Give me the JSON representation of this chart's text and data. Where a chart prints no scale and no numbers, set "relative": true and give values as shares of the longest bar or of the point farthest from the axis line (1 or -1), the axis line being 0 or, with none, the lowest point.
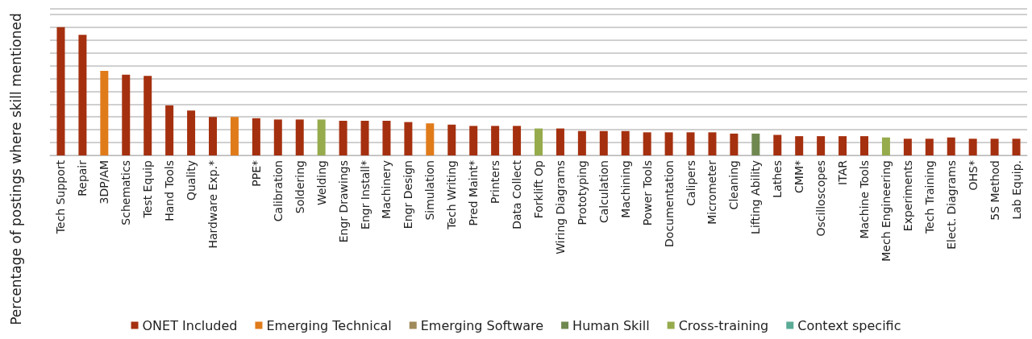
{
  "chart_data": {
    "type": "bar",
    "ylabel": "Percentage of postings where skill mentioned",
    "relative": true,
    "stacked": true,
    "grid": "y",
    "legend": "bottom",
    "categories": [
      "Tech Support",
      "Repair",
      "3DP/AM",
      "Schematics",
      "Test Equip",
      "Hand Tools",
      "Quality",
      "Hardware Exp.*",
      null,
      "PPE*",
      "Calibration",
      "Soldering",
      "Welding",
      "Engr Drawings",
      "Engr Install*",
      "Machinery",
      "Engr Design",
      "Simulation",
      "Tech Writing",
      "Pred Maint*",
      "Printers",
      "Data Collect",
      "Forklift Op",
      "Wiring Diagrams",
      "Prototyping",
      "Calculation",
      "Machining",
      "Power Tools",
      "Documentation",
      "Calipers",
      "Micrometer",
      "Cleaning",
      "Lifting Ability",
      "Lathes",
      "CMM*",
      "Oscilloscopes",
      "ITAR",
      "Machine Tools",
      "Mech Engineering",
      "Experiments",
      "Tech Training",
      "Elect. Diagrams",
      "OHS*",
      "5S Method",
      "Lab Equip."
    ],
    "series": [
      {
        "name": "ONET Included",
        "color": "#a5300f",
        "values": [
          1,
          0.94,
          null,
          0.63,
          0.62,
          0.39,
          0.35,
          0.3,
          null,
          0.29,
          0.28,
          0.28,
          null,
          0.27,
          0.27,
          0.27,
          0.26,
          null,
          0.24,
          0.23,
          0.23,
          0.23,
          null,
          0.21,
          0.19,
          0.19,
          0.19,
          0.18,
          0.18,
          0.18,
          0.18,
          0.17,
          null,
          0.16,
          0.15,
          0.15,
          0.15,
          0.15,
          null,
          0.13,
          0.13,
          0.14,
          0.13,
          0.13,
          0.13
        ]
      },
      {
        "name": "Emerging Technical",
        "color": "#e07b1a",
        "values": [
          null,
          null,
          0.66,
          null,
          null,
          null,
          null,
          null,
          0.3,
          null,
          null,
          null,
          null,
          null,
          null,
          null,
          null,
          0.25,
          null,
          null,
          null,
          null,
          null,
          null,
          null,
          null,
          null,
          null,
          null,
          null,
          null,
          null,
          null,
          null,
          null,
          null,
          null,
          null,
          null,
          null,
          null,
          null,
          null,
          null,
          null
        ]
      },
      {
        "name": "Emerging Software",
        "color": "#a08a5a",
        "values": [
          null,
          null,
          null,
          null,
          null,
          null,
          null,
          null,
          null,
          null,
          null,
          null,
          null,
          null,
          null,
          null,
          null,
          null,
          null,
          null,
          null,
          null,
          null,
          null,
          null,
          null,
          null,
          null,
          null,
          null,
          null,
          null,
          null,
          null,
          null,
          null,
          null,
          null,
          null,
          null,
          null,
          null,
          null,
          null,
          null
        ]
      },
      {
        "name": "Human Skill",
        "color": "#6f884f",
        "values": [
          null,
          null,
          null,
          null,
          null,
          null,
          null,
          null,
          null,
          null,
          null,
          null,
          null,
          null,
          null,
          null,
          null,
          null,
          null,
          null,
          null,
          null,
          null,
          null,
          null,
          null,
          null,
          null,
          null,
          null,
          null,
          null,
          0.17,
          null,
          null,
          null,
          null,
          null,
          null,
          null,
          null,
          null,
          null,
          null,
          null
        ]
      },
      {
        "name": "Cross-training",
        "color": "#96ab4c",
        "values": [
          null,
          null,
          null,
          null,
          null,
          null,
          null,
          null,
          null,
          null,
          null,
          null,
          0.28,
          null,
          null,
          null,
          null,
          null,
          null,
          null,
          null,
          null,
          0.21,
          null,
          null,
          null,
          null,
          null,
          null,
          null,
          null,
          null,
          null,
          null,
          null,
          null,
          null,
          null,
          0.14,
          null,
          null,
          null,
          null,
          null,
          null
        ]
      },
      {
        "name": "Context specific",
        "color": "#5aab96",
        "values": [
          null,
          null,
          null,
          null,
          null,
          null,
          null,
          null,
          null,
          null,
          null,
          null,
          null,
          null,
          null,
          null,
          null,
          null,
          null,
          null,
          null,
          null,
          null,
          null,
          null,
          null,
          null,
          null,
          null,
          null,
          null,
          null,
          null,
          null,
          null,
          null,
          null,
          null,
          null,
          null,
          null,
          null,
          null,
          null,
          null
        ]
      }
    ]
  }
}
